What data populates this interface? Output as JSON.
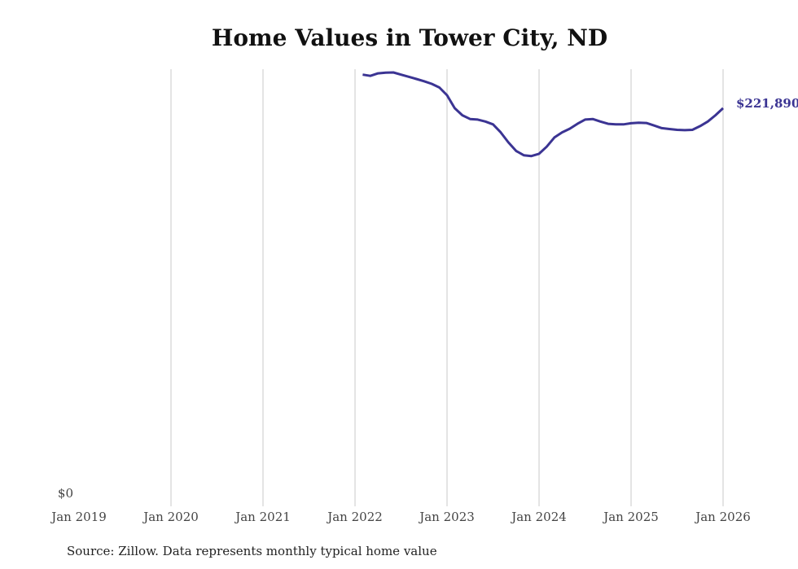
{
  "chart_data": {
    "type": "line",
    "title": "Home Values in Tower City, ND",
    "xlabel": "",
    "ylabel": "",
    "x_ticks": [
      "Jan 2019",
      "Jan 2020",
      "Jan 2021",
      "Jan 2022",
      "Jan 2023",
      "Jan 2024",
      "Jan 2025",
      "Jan 2026"
    ],
    "y_ticks": [
      "$0"
    ],
    "ylim": [
      0,
      243600
    ],
    "xlim": [
      "2019-01",
      "2026-01"
    ],
    "grid": "vertical",
    "line_color": "#3b3493",
    "end_label": "$221,890",
    "series": [
      {
        "name": "Typical home value",
        "x": [
          "2022-02",
          "2022-03",
          "2022-04",
          "2022-05",
          "2022-06",
          "2022-07",
          "2022-08",
          "2022-09",
          "2022-10",
          "2022-11",
          "2022-12",
          "2023-01",
          "2023-02",
          "2023-03",
          "2023-04",
          "2023-05",
          "2023-06",
          "2023-07",
          "2023-08",
          "2023-09",
          "2023-10",
          "2023-11",
          "2023-12",
          "2024-01",
          "2024-02",
          "2024-03",
          "2024-04",
          "2024-05",
          "2024-06",
          "2024-07",
          "2024-08",
          "2024-09",
          "2024-10",
          "2024-11",
          "2024-12",
          "2025-01",
          "2025-02",
          "2025-03",
          "2025-04",
          "2025-05",
          "2025-06",
          "2025-07",
          "2025-08",
          "2025-09",
          "2025-10",
          "2025-11",
          "2025-12",
          "2026-01"
        ],
        "values": [
          240540,
          239900,
          241300,
          241650,
          241800,
          240540,
          239400,
          238150,
          236870,
          235430,
          233380,
          229070,
          221890,
          217910,
          215860,
          215540,
          214420,
          212830,
          208390,
          202800,
          198040,
          195640,
          195180,
          196450,
          200420,
          205520,
          208390,
          210420,
          213150,
          215540,
          215860,
          214420,
          213150,
          212830,
          212830,
          213470,
          213790,
          213630,
          212200,
          210740,
          210270,
          209790,
          209640,
          209790,
          211880,
          214420,
          217910,
          221890
        ]
      }
    ]
  },
  "source": "Source: Zillow. Data represents monthly typical home value"
}
